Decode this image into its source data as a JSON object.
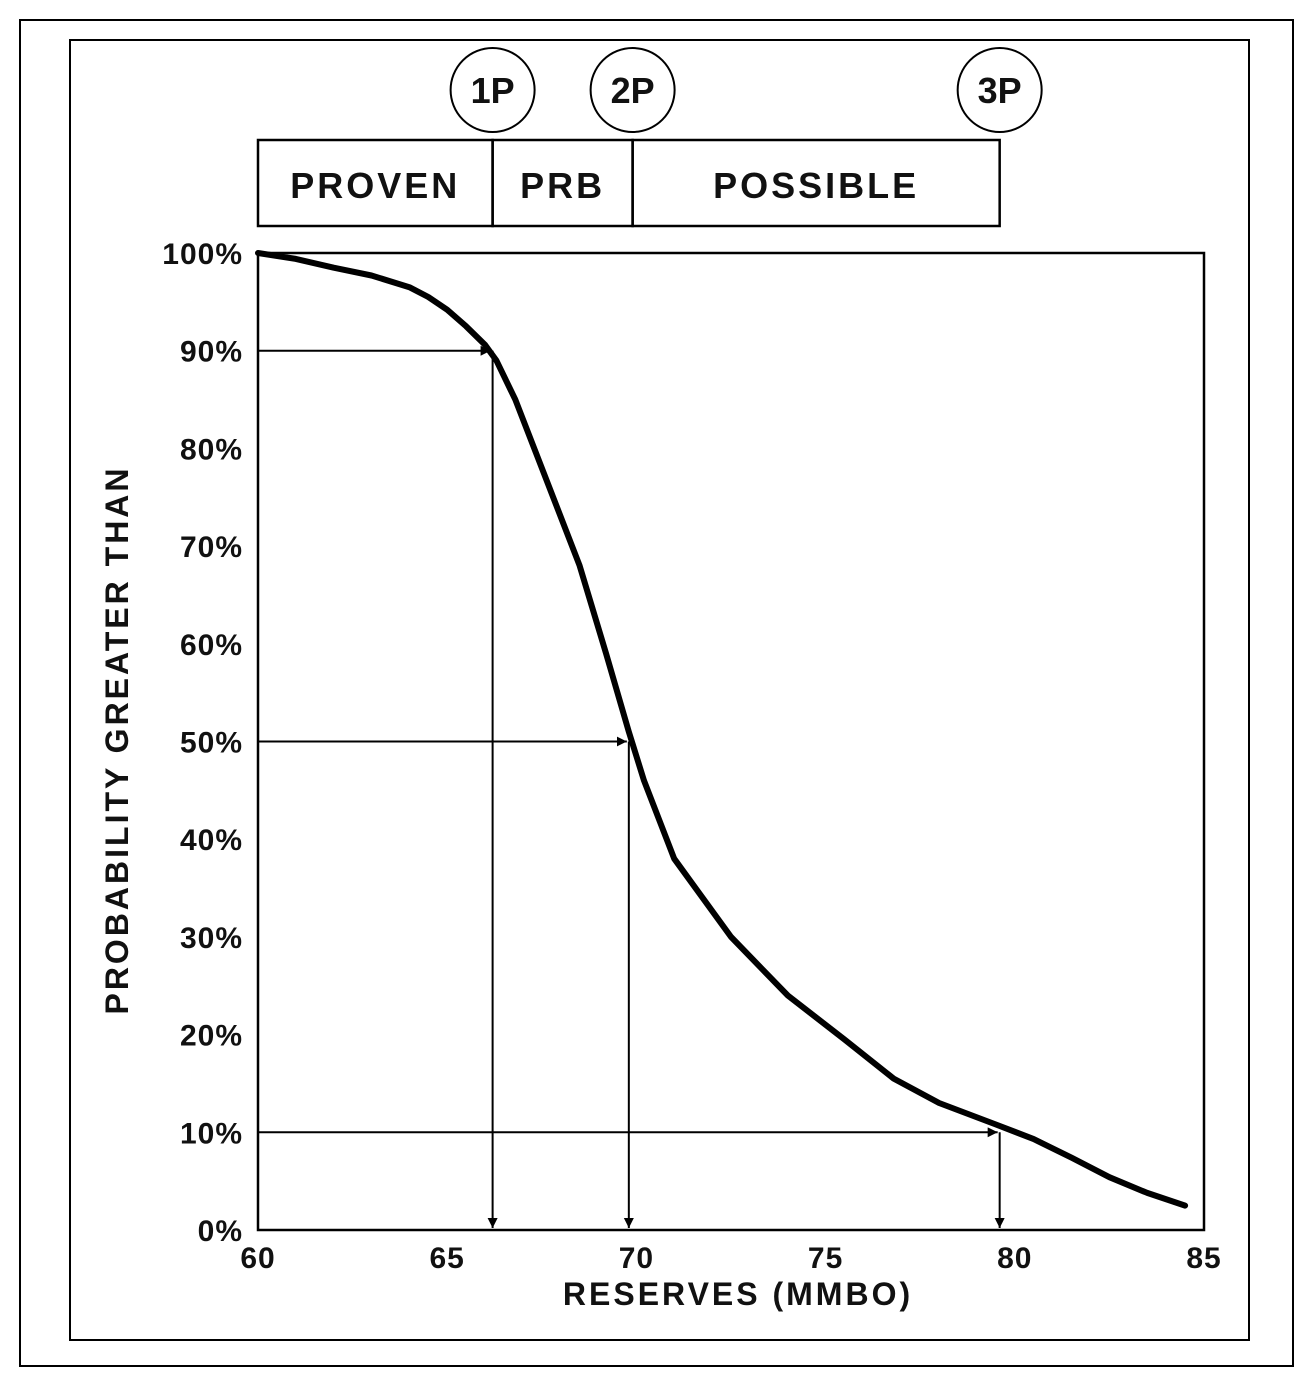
{
  "chart_data": {
    "type": "line",
    "title": "",
    "xlabel": "RESERVES (MMBO)",
    "ylabel": "PROBABILITY GREATER THAN",
    "xlim": [
      60,
      85
    ],
    "ylim": [
      0,
      100
    ],
    "grid": false,
    "x_ticks": [
      60,
      65,
      70,
      75,
      80,
      85
    ],
    "x_tick_labels": [
      "60",
      "65",
      "70",
      "75",
      "80",
      "85"
    ],
    "y_ticks": [
      0,
      10,
      20,
      30,
      40,
      50,
      60,
      70,
      80,
      90,
      100
    ],
    "y_tick_labels": [
      "0%",
      "10%",
      "20%",
      "30%",
      "40%",
      "50%",
      "60%",
      "70%",
      "80%",
      "90%",
      "100%"
    ],
    "series": [
      {
        "x": [
          60,
          61,
          62,
          63,
          64,
          64.5,
          65,
          65.5,
          66,
          66.3,
          66.8,
          67.5,
          68.5,
          69.2,
          69.8,
          70.2,
          71,
          72.5,
          74,
          75.5,
          76.8,
          78,
          79.5,
          80.5,
          81.5,
          82.5,
          83.5,
          84.5
        ],
        "y": [
          100,
          99.4,
          98.5,
          97.7,
          96.5,
          95.5,
          94.2,
          92.5,
          90.6,
          89,
          85,
          78,
          68,
          59,
          51,
          46,
          38,
          30,
          24,
          19.5,
          15.5,
          13,
          10.8,
          9.3,
          7.4,
          5.4,
          3.8,
          2.5
        ]
      }
    ],
    "reference_lines": [
      {
        "probability": 90,
        "reserves": 66.2
      },
      {
        "probability": 50,
        "reserves": 69.8
      },
      {
        "probability": 10,
        "reserves": 79.6
      }
    ],
    "categories_bar": [
      {
        "label": "PROVEN",
        "from": 60,
        "to": 66.2
      },
      {
        "label": "PRB",
        "from": 66.2,
        "to": 69.9
      },
      {
        "label": "POSSIBLE",
        "from": 69.9,
        "to": 79.6
      }
    ],
    "markers": [
      {
        "label": "1P",
        "x": 66.2
      },
      {
        "label": "2P",
        "x": 69.9
      },
      {
        "label": "3P",
        "x": 79.6
      }
    ]
  }
}
